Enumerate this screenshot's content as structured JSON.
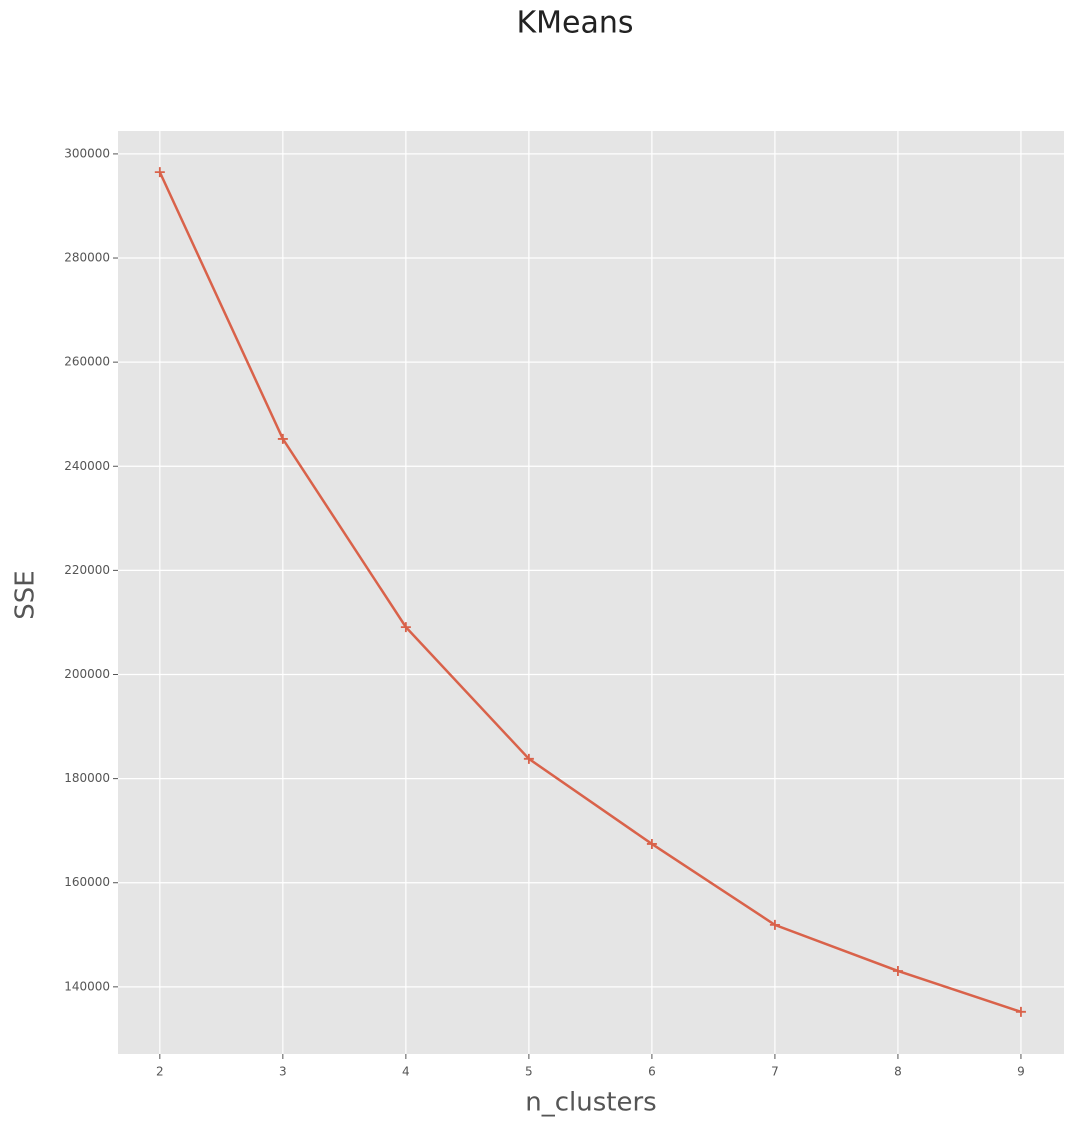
{
  "chart_data": {
    "type": "line",
    "title": "KMeans",
    "x_label": "n_clusters",
    "y_label": "SSE",
    "x": [
      2,
      3,
      4,
      5,
      6,
      7,
      8,
      9
    ],
    "series": [
      {
        "name": "SSE",
        "color": "#d9624a",
        "values": [
          296500,
          245250,
          209100,
          183800,
          167450,
          151900,
          143050,
          135200
        ]
      }
    ],
    "xlim": [
      1.66,
      9.35
    ],
    "xticks": [
      2,
      3,
      4,
      5,
      6,
      7,
      8,
      9
    ],
    "ylim": [
      127100,
      304400
    ],
    "yticks": [
      140000,
      160000,
      180000,
      200000,
      220000,
      240000,
      260000,
      280000,
      300000
    ],
    "grid": true,
    "marker": "+"
  }
}
